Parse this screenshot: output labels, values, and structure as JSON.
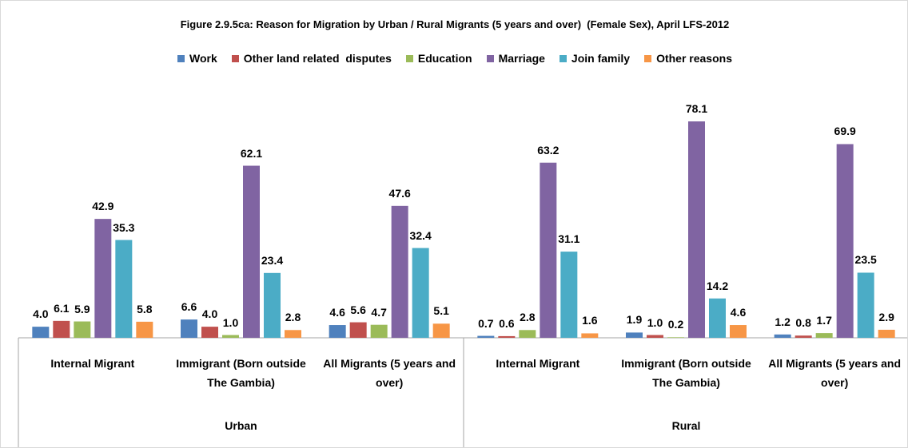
{
  "chart_data": {
    "type": "bar",
    "title": "Figure 2.9.5ca: Reason for Migration by Urban / Rural Migrants (5 years and over)  (Female Sex), April LFS-2012",
    "groups": [
      "Urban",
      "Rural"
    ],
    "categories": [
      "Internal Migrant",
      "Immigrant (Born outside The Gambia)",
      "All Migrants (5 years and over)",
      "Internal Migrant",
      "Immigrant (Born outside The Gambia)",
      "All Migrants (5 years and over)"
    ],
    "series": [
      {
        "name": "Work",
        "color": "#4f81bd",
        "values": [
          4.0,
          6.6,
          4.6,
          0.7,
          1.9,
          1.2
        ],
        "value_labels": [
          "4.0",
          "6.6",
          "4.6",
          "0.7",
          "1.9",
          "1.2"
        ]
      },
      {
        "name": "Other land related  disputes",
        "color": "#c0504d",
        "values": [
          6.1,
          4.0,
          5.6,
          0.6,
          1.0,
          0.8
        ],
        "value_labels": [
          "6.1",
          "4.0",
          "5.6",
          "0.6",
          "1.0",
          "0.8"
        ]
      },
      {
        "name": "Education",
        "color": "#9bbb59",
        "values": [
          5.9,
          1.0,
          4.7,
          2.8,
          0.2,
          1.7
        ],
        "value_labels": [
          "5.9",
          "1.0",
          "4.7",
          "2.8",
          "0.2",
          "1.7"
        ]
      },
      {
        "name": "Marriage",
        "color": "#8064a2",
        "values": [
          42.9,
          62.1,
          47.6,
          63.2,
          78.1,
          69.9
        ],
        "value_labels": [
          "42.9",
          "62.1",
          "47.6",
          "63.2",
          "78.1",
          "69.9"
        ]
      },
      {
        "name": "Join family",
        "color": "#4bacc6",
        "values": [
          35.3,
          23.4,
          32.4,
          31.1,
          14.2,
          23.5
        ],
        "value_labels": [
          "35.3",
          "23.4",
          "32.4",
          "31.1",
          "14.2",
          "23.5"
        ]
      },
      {
        "name": "Other reasons",
        "color": "#f79646",
        "values": [
          5.8,
          2.8,
          5.1,
          1.6,
          4.6,
          2.9
        ],
        "value_labels": [
          "5.8",
          "2.8",
          "5.1",
          "1.6",
          "4.6",
          "2.9"
        ]
      }
    ]
  }
}
